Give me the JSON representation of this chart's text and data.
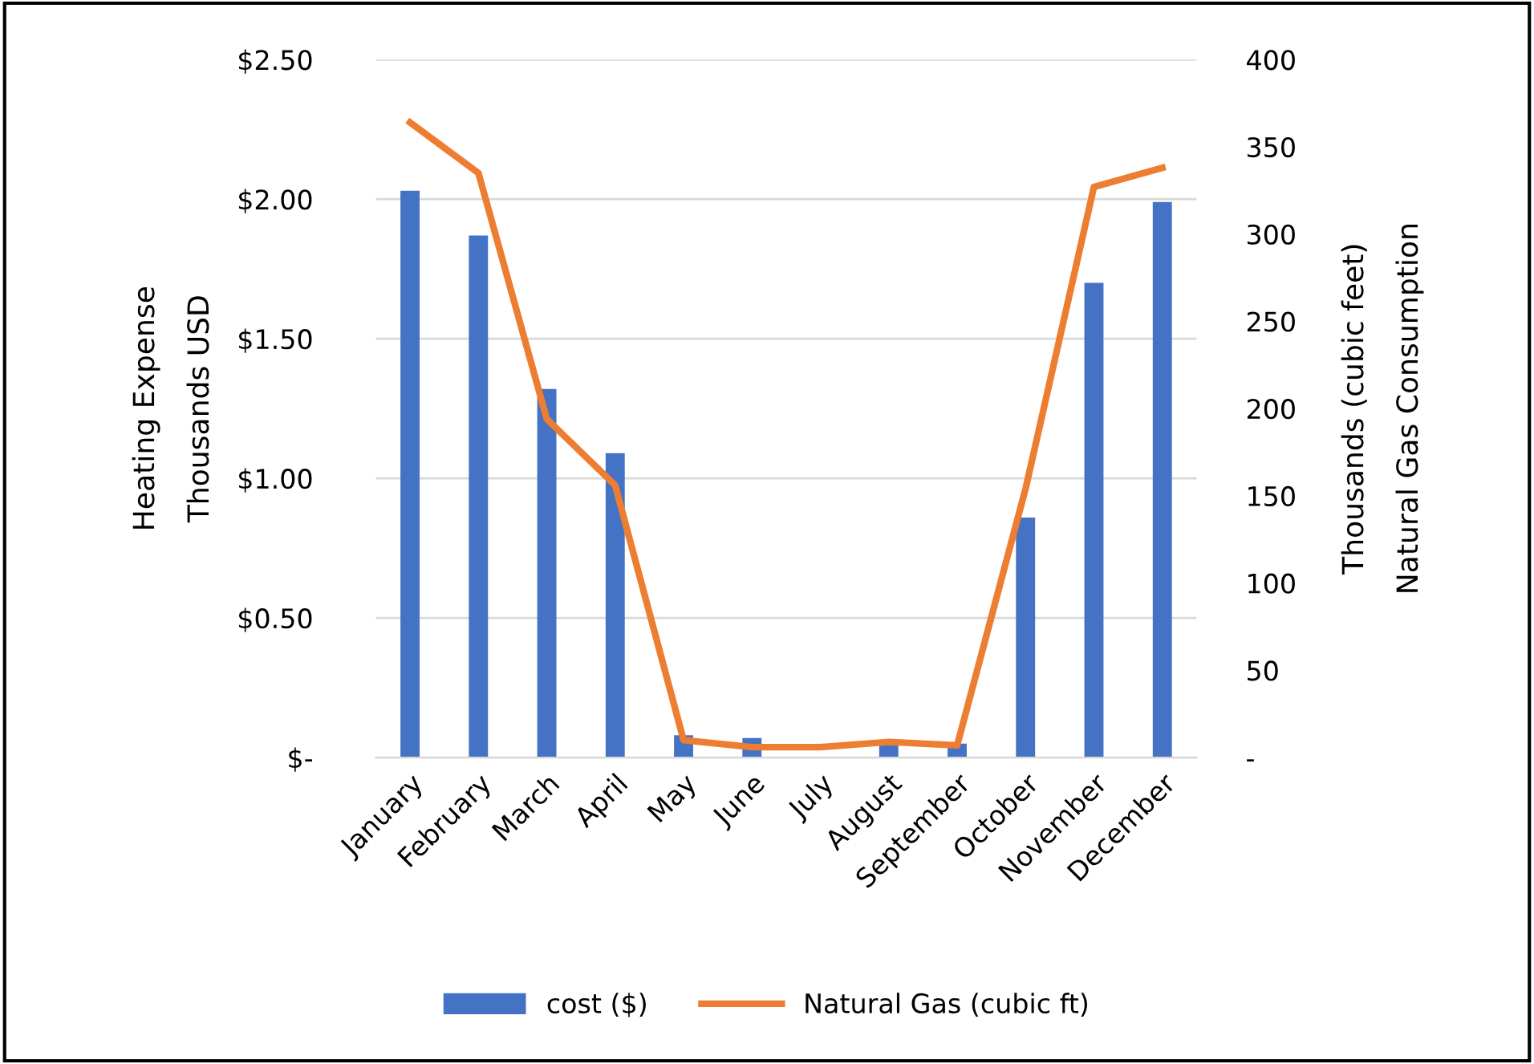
{
  "chart_data": {
    "type": "bar",
    "categories": [
      "January",
      "February",
      "March",
      "April",
      "May",
      "June",
      "July",
      "August",
      "September",
      "October",
      "November",
      "December"
    ],
    "series": [
      {
        "name": "cost ($)",
        "color": "#4472c4",
        "values": [
          2.03,
          1.87,
          1.32,
          1.09,
          0.08,
          0.07,
          null,
          0.06,
          0.05,
          0.86,
          1.7,
          1.99
        ]
      },
      {
        "name": "Natural Gas (cubic ft)",
        "type": "line",
        "axis": "y2",
        "color": "#ed7d31",
        "values": [
          364,
          335,
          194,
          156,
          10,
          6,
          6,
          9,
          7,
          154,
          327,
          338
        ]
      }
    ],
    "ylabel": "Heating Expense\nThousands USD",
    "y2label": "Thousands (cubic feet)\nNatural Gas Consumption",
    "ylim": [
      0,
      2.5
    ],
    "yticks": [
      {
        "value": 0,
        "label": "$-"
      },
      {
        "value": 0.5,
        "label": "$0.50"
      },
      {
        "value": 1,
        "label": "$1.00"
      },
      {
        "value": 1.5,
        "label": "$1.50"
      },
      {
        "value": 2,
        "label": "$2.00"
      },
      {
        "value": 2.5,
        "label": "$2.50"
      }
    ],
    "y2lim": [
      0,
      400
    ],
    "y2ticks": [
      {
        "value": 0,
        "label": "-"
      },
      50,
      100,
      150,
      200,
      250,
      300,
      350,
      400
    ],
    "grid": "y",
    "legend": "bottom",
    "line_style": "solid",
    "marker": "none"
  }
}
